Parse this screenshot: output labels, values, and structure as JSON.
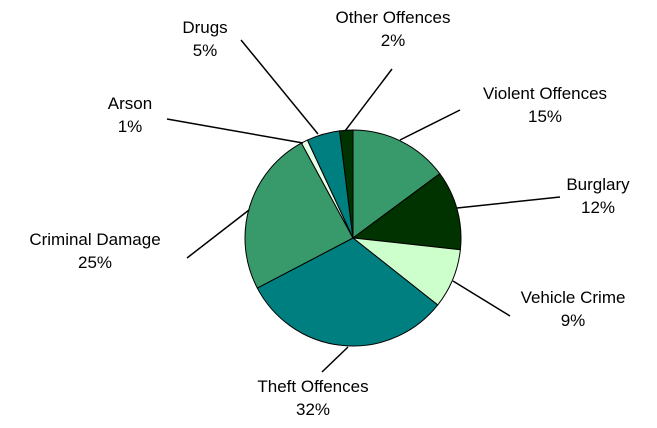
{
  "chart_data": {
    "type": "pie",
    "start_angle_deg": 0,
    "direction": "clockwise",
    "slices": [
      {
        "label": "Violent Offences",
        "value": 15,
        "value_label": "15%",
        "color": "#38996A"
      },
      {
        "label": "Burglary",
        "value": 12,
        "value_label": "12%",
        "color": "#003300"
      },
      {
        "label": "Vehicle Crime",
        "value": 9,
        "value_label": "9%",
        "color": "#CCFFCC"
      },
      {
        "label": "Theft Offences",
        "value": 32,
        "value_label": "32%",
        "color": "#007F80"
      },
      {
        "label": "Criminal Damage",
        "value": 25,
        "value_label": "25%",
        "color": "#38996A"
      },
      {
        "label": "Arson",
        "value": 1,
        "value_label": "1%",
        "color": "#E6FFE6"
      },
      {
        "label": "Drugs",
        "value": 5,
        "value_label": "5%",
        "color": "#007F80"
      },
      {
        "label": "Other Offences",
        "value": 2,
        "value_label": "2%",
        "color": "#003300"
      }
    ]
  }
}
